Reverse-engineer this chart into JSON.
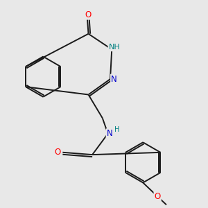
{
  "bg_color": "#e8e8e8",
  "bond_color": "#1a1a1a",
  "atom_colors": {
    "O": "#ff0000",
    "N": "#0000cc",
    "NH": "#008080",
    "C": "#1a1a1a"
  },
  "figsize": [
    3.0,
    3.0
  ],
  "dpi": 100,
  "bond_lw": 1.4,
  "font_size": 8.5
}
